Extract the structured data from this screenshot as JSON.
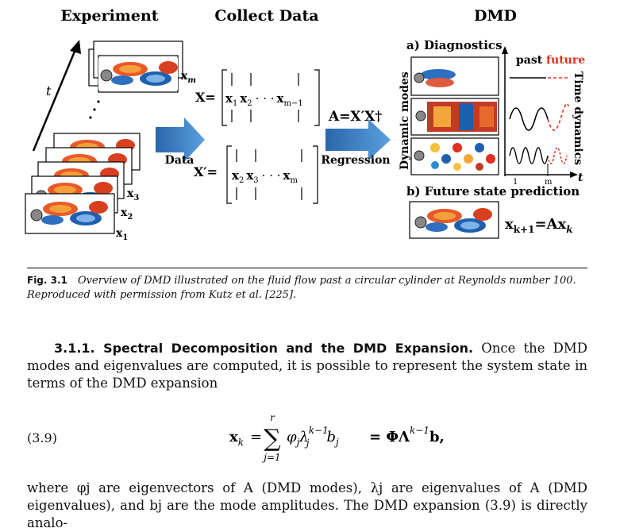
{
  "figure": {
    "headings": {
      "experiment": "Experiment",
      "collect": "Collect Data",
      "dmd": "DMD"
    },
    "t_label": "t",
    "snapshot_labels": {
      "xm": "x",
      "xm_sub": "m",
      "x3": "x",
      "x3_sub": "3",
      "x2": "x",
      "x2_sub": "2",
      "x1": "x",
      "x1_sub": "1"
    },
    "arrow_label_data": "Data",
    "arrow_label_regression": "Regression",
    "matrix_X": {
      "name": "X=",
      "cols": [
        "x",
        "x",
        "x"
      ],
      "subs": [
        "1",
        "2",
        "m−1"
      ]
    },
    "matrix_Xp": {
      "name": "X′=",
      "cols": [
        "x",
        "x",
        "x"
      ],
      "subs": [
        "2",
        "3",
        "m"
      ]
    },
    "operator": "A=X′X†",
    "diagnostics": "a) Diagnostics",
    "past": "past",
    "future": "future",
    "dynamic_modes": "Dynamic modes",
    "time_dynamics": "Time dynamics",
    "axis_1": "1",
    "axis_m": "m",
    "axis_t": "t",
    "prediction": "b) Future state prediction",
    "prediction_eq": "x",
    "prediction_eq_sub": "k+1",
    "prediction_eq_rhs": "=Ax",
    "prediction_eq_rhs_sub": "k",
    "colors": {
      "arrow": "#3b7fc4",
      "future": "#e0301e"
    }
  },
  "caption": {
    "label": "Fig. 3.1",
    "text": "Overview of DMD illustrated on the fluid flow past a circular cylinder at Reynolds number 100. Reproduced with permission from Kutz et al. [225]."
  },
  "section": {
    "title": "3.1.1. Spectral Decomposition and the DMD Expansion.",
    "text": "Once the DMD modes and eigenvalues are computed, it is possible to represent the system state in terms of the DMD expansion"
  },
  "equation": {
    "number": "(3.9)",
    "lhs": "x",
    "lhs_sub": "k",
    "eq": "=",
    "sum_top": "r",
    "sum_bottom": "j=1",
    "term": "φ",
    "term_sub": "j",
    "lambda": "λ",
    "lambda_sub": "j",
    "lambda_sup": "k−1",
    "b": "b",
    "b_sub": "j",
    "rhs": "= ΦΛ",
    "rhs_sup": "k−1",
    "rhs_end": "b,"
  },
  "paragraph2": "where φj are eigenvectors of A (DMD modes), λj are eigenvalues of A (DMD eigenvalues), and bj are the mode amplitudes. The DMD expansion (3.9) is directly analo-"
}
